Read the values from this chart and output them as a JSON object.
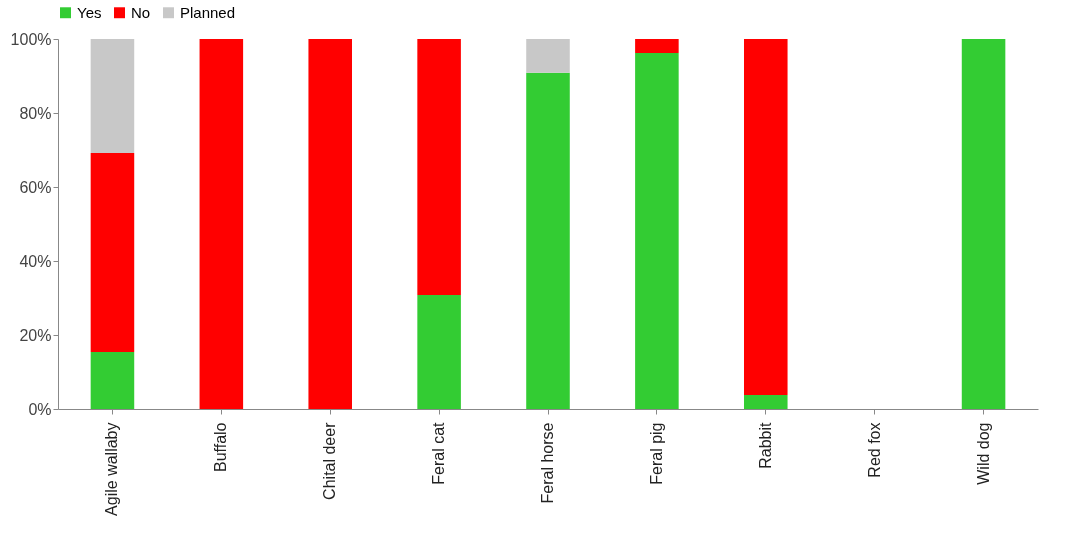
{
  "chart_data": {
    "type": "bar",
    "stacked": true,
    "legend": "top",
    "categories": [
      "Agile wallaby",
      "Buffalo",
      "Chital deer",
      "Feral cat",
      "Feral horse",
      "Feral pig",
      "Rabbit",
      "Red fox",
      "Wild dog"
    ],
    "series": [
      {
        "name": "Yes",
        "color": "#33cc33",
        "values": [
          15.4,
          0,
          0,
          30.8,
          90.9,
          96.2,
          3.8,
          0,
          100
        ]
      },
      {
        "name": "No",
        "color": "#ff0000",
        "values": [
          53.8,
          100,
          100,
          69.2,
          0,
          3.8,
          96.2,
          0,
          0
        ]
      },
      {
        "name": "Planned",
        "color": "#c8c8c8",
        "values": [
          30.8,
          0,
          0,
          0,
          9.1,
          0,
          0,
          0,
          0
        ]
      }
    ],
    "ylim": [
      0,
      100
    ],
    "yticks": [
      {
        "value": 0,
        "label": "0%"
      },
      {
        "value": 20,
        "label": "20%"
      },
      {
        "value": 40,
        "label": "40%"
      },
      {
        "value": 60,
        "label": "60%"
      },
      {
        "value": 80,
        "label": "80%"
      },
      {
        "value": 100,
        "label": "100%"
      }
    ]
  }
}
